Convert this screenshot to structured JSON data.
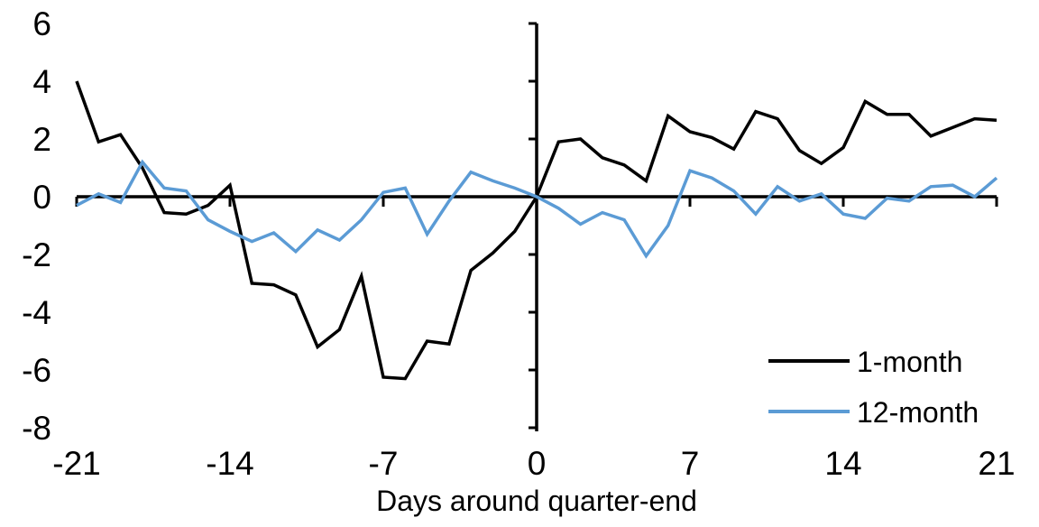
{
  "chart_data": {
    "type": "line",
    "title": "",
    "xlabel": "Days around quarter-end",
    "ylabel": "",
    "xlim": [
      -21,
      21
    ],
    "ylim": [
      -8,
      6
    ],
    "x_ticks": [
      -21,
      -14,
      -7,
      0,
      7,
      14,
      21
    ],
    "y_ticks": [
      6,
      4,
      2,
      0,
      -2,
      -4,
      -6,
      -8
    ],
    "grid": false,
    "legend_position": "lower-right",
    "x": [
      -21,
      -20,
      -19,
      -18,
      -17,
      -16,
      -15,
      -14,
      -13,
      -12,
      -11,
      -10,
      -9,
      -8,
      -7,
      -6,
      -5,
      -4,
      -3,
      -2,
      -1,
      0,
      1,
      2,
      3,
      4,
      5,
      6,
      7,
      8,
      9,
      10,
      11,
      12,
      13,
      14,
      15,
      16,
      17,
      18,
      19,
      20,
      21
    ],
    "series": [
      {
        "name": "1-month",
        "color": "#000000",
        "values": [
          4.0,
          1.9,
          2.15,
          1.0,
          -0.55,
          -0.6,
          -0.3,
          0.4,
          -3.0,
          -3.05,
          -3.4,
          -5.2,
          -4.6,
          -2.75,
          -6.25,
          -6.3,
          -5.0,
          -5.1,
          -2.55,
          -1.95,
          -1.2,
          0.0,
          1.9,
          2.0,
          1.35,
          1.1,
          0.55,
          2.8,
          2.25,
          2.05,
          1.65,
          2.95,
          2.7,
          1.6,
          1.15,
          1.7,
          3.3,
          2.85,
          2.85,
          2.1,
          2.4,
          2.7,
          2.65
        ]
      },
      {
        "name": "12-month",
        "color": "#5B9BD5",
        "values": [
          -0.3,
          0.1,
          -0.2,
          1.2,
          0.3,
          0.2,
          -0.8,
          -1.2,
          -1.55,
          -1.25,
          -1.9,
          -1.15,
          -1.5,
          -0.8,
          0.15,
          0.3,
          -1.3,
          -0.15,
          0.85,
          0.55,
          0.3,
          0.0,
          -0.4,
          -0.95,
          -0.55,
          -0.8,
          -2.05,
          -1.0,
          0.9,
          0.65,
          0.2,
          -0.6,
          0.35,
          -0.15,
          0.1,
          -0.6,
          -0.75,
          -0.05,
          -0.15,
          0.35,
          0.4,
          0.0,
          0.65
        ]
      }
    ]
  }
}
